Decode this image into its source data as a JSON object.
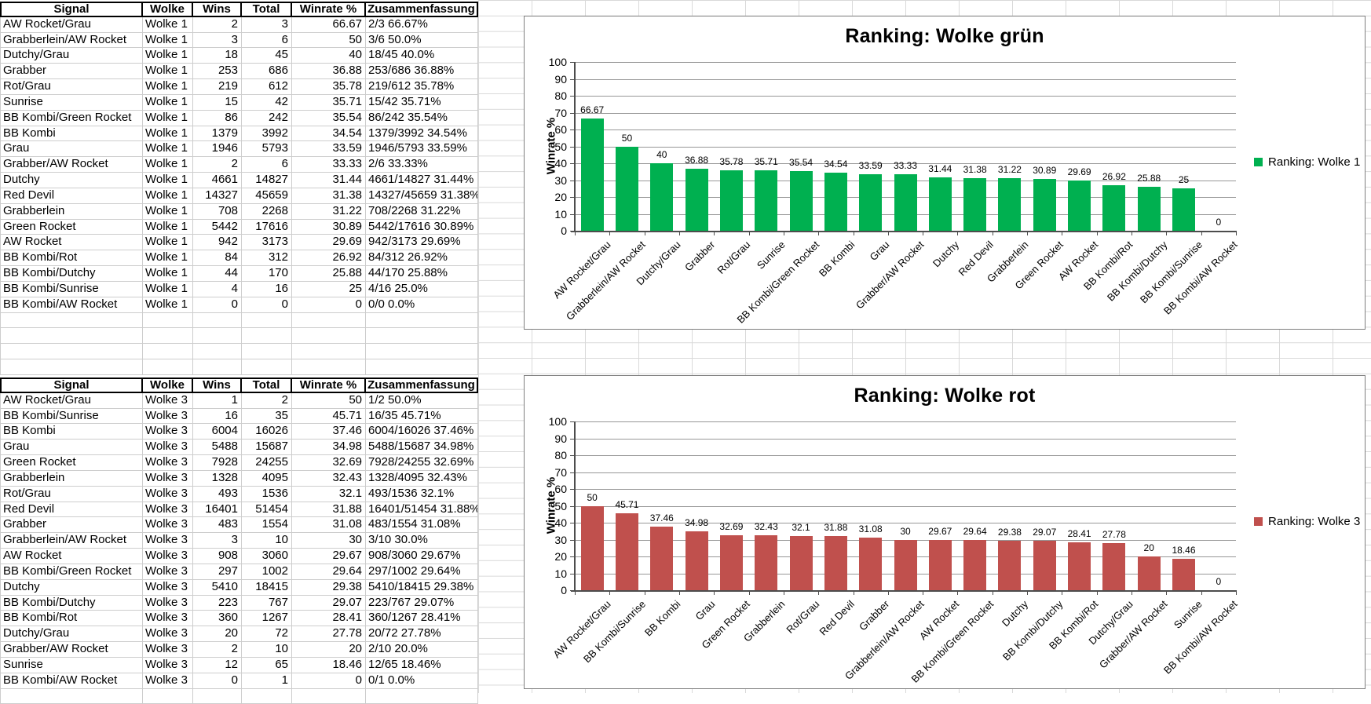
{
  "app": {
    "type": "spreadsheet"
  },
  "tables": [
    {
      "name": "Wolke 1",
      "headers": [
        "Signal",
        "Wolke",
        "Wins",
        "Total",
        "Winrate %",
        "Zusammenfassung"
      ],
      "rows": [
        [
          "AW Rocket/Grau",
          "Wolke 1",
          "2",
          "3",
          "66.67",
          "2/3 66.67%"
        ],
        [
          "Grabberlein/AW Rocket",
          "Wolke 1",
          "3",
          "6",
          "50",
          "3/6 50.0%"
        ],
        [
          "Dutchy/Grau",
          "Wolke 1",
          "18",
          "45",
          "40",
          "18/45 40.0%"
        ],
        [
          "Grabber",
          "Wolke 1",
          "253",
          "686",
          "36.88",
          "253/686 36.88%"
        ],
        [
          "Rot/Grau",
          "Wolke 1",
          "219",
          "612",
          "35.78",
          "219/612 35.78%"
        ],
        [
          "Sunrise",
          "Wolke 1",
          "15",
          "42",
          "35.71",
          "15/42 35.71%"
        ],
        [
          "BB Kombi/Green Rocket",
          "Wolke 1",
          "86",
          "242",
          "35.54",
          "86/242 35.54%"
        ],
        [
          "BB Kombi",
          "Wolke 1",
          "1379",
          "3992",
          "34.54",
          "1379/3992 34.54%"
        ],
        [
          "Grau",
          "Wolke 1",
          "1946",
          "5793",
          "33.59",
          "1946/5793 33.59%"
        ],
        [
          "Grabber/AW Rocket",
          "Wolke 1",
          "2",
          "6",
          "33.33",
          "2/6 33.33%"
        ],
        [
          "Dutchy",
          "Wolke 1",
          "4661",
          "14827",
          "31.44",
          "4661/14827 31.44%"
        ],
        [
          "Red Devil",
          "Wolke 1",
          "14327",
          "45659",
          "31.38",
          "14327/45659 31.38%"
        ],
        [
          "Grabberlein",
          "Wolke 1",
          "708",
          "2268",
          "31.22",
          "708/2268 31.22%"
        ],
        [
          "Green Rocket",
          "Wolke 1",
          "5442",
          "17616",
          "30.89",
          "5442/17616 30.89%"
        ],
        [
          "AW Rocket",
          "Wolke 1",
          "942",
          "3173",
          "29.69",
          "942/3173 29.69%"
        ],
        [
          "BB Kombi/Rot",
          "Wolke 1",
          "84",
          "312",
          "26.92",
          "84/312 26.92%"
        ],
        [
          "BB Kombi/Dutchy",
          "Wolke 1",
          "44",
          "170",
          "25.88",
          "44/170 25.88%"
        ],
        [
          "BB Kombi/Sunrise",
          "Wolke 1",
          "4",
          "16",
          "25",
          "4/16 25.0%"
        ],
        [
          "BB Kombi/AW Rocket",
          "Wolke 1",
          "0",
          "0",
          "0",
          "0/0 0.0%"
        ]
      ]
    },
    {
      "name": "Wolke 3",
      "headers": [
        "Signal",
        "Wolke",
        "Wins",
        "Total",
        "Winrate %",
        "Zusammenfassung"
      ],
      "rows": [
        [
          "AW Rocket/Grau",
          "Wolke 3",
          "1",
          "2",
          "50",
          "1/2 50.0%"
        ],
        [
          "BB Kombi/Sunrise",
          "Wolke 3",
          "16",
          "35",
          "45.71",
          "16/35 45.71%"
        ],
        [
          "BB Kombi",
          "Wolke 3",
          "6004",
          "16026",
          "37.46",
          "6004/16026 37.46%"
        ],
        [
          "Grau",
          "Wolke 3",
          "5488",
          "15687",
          "34.98",
          "5488/15687 34.98%"
        ],
        [
          "Green Rocket",
          "Wolke 3",
          "7928",
          "24255",
          "32.69",
          "7928/24255 32.69%"
        ],
        [
          "Grabberlein",
          "Wolke 3",
          "1328",
          "4095",
          "32.43",
          "1328/4095 32.43%"
        ],
        [
          "Rot/Grau",
          "Wolke 3",
          "493",
          "1536",
          "32.1",
          "493/1536 32.1%"
        ],
        [
          "Red Devil",
          "Wolke 3",
          "16401",
          "51454",
          "31.88",
          "16401/51454 31.88%"
        ],
        [
          "Grabber",
          "Wolke 3",
          "483",
          "1554",
          "31.08",
          "483/1554 31.08%"
        ],
        [
          "Grabberlein/AW Rocket",
          "Wolke 3",
          "3",
          "10",
          "30",
          "3/10 30.0%"
        ],
        [
          "AW Rocket",
          "Wolke 3",
          "908",
          "3060",
          "29.67",
          "908/3060 29.67%"
        ],
        [
          "BB Kombi/Green Rocket",
          "Wolke 3",
          "297",
          "1002",
          "29.64",
          "297/1002 29.64%"
        ],
        [
          "Dutchy",
          "Wolke 3",
          "5410",
          "18415",
          "29.38",
          "5410/18415 29.38%"
        ],
        [
          "BB Kombi/Dutchy",
          "Wolke 3",
          "223",
          "767",
          "29.07",
          "223/767 29.07%"
        ],
        [
          "BB Kombi/Rot",
          "Wolke 3",
          "360",
          "1267",
          "28.41",
          "360/1267 28.41%"
        ],
        [
          "Dutchy/Grau",
          "Wolke 3",
          "20",
          "72",
          "27.78",
          "20/72 27.78%"
        ],
        [
          "Grabber/AW Rocket",
          "Wolke 3",
          "2",
          "10",
          "20",
          "2/10 20.0%"
        ],
        [
          "Sunrise",
          "Wolke 3",
          "12",
          "65",
          "18.46",
          "12/65 18.46%"
        ],
        [
          "BB Kombi/AW Rocket",
          "Wolke 3",
          "0",
          "1",
          "0",
          "0/1 0.0%"
        ]
      ]
    }
  ],
  "chart_data": [
    {
      "type": "bar",
      "title": "Ranking: Wolke grün",
      "ylabel": "Winrate %",
      "xlabel": "",
      "legend": "Ranking: Wolke 1",
      "legend_position": "right",
      "bar_color": "#00B050",
      "grid": true,
      "ylim": [
        0,
        100
      ],
      "ytick_step": 10,
      "categories": [
        "AW Rocket/Grau",
        "Grabberlein/AW Rocket",
        "Dutchy/Grau",
        "Grabber",
        "Rot/Grau",
        "Sunrise",
        "BB Kombi/Green Rocket",
        "BB Kombi",
        "Grau",
        "Grabber/AW Rocket",
        "Dutchy",
        "Red Devil",
        "Grabberlein",
        "Green Rocket",
        "AW Rocket",
        "BB Kombi/Rot",
        "BB Kombi/Dutchy",
        "BB Kombi/Sunrise",
        "BB Kombi/AW Rocket"
      ],
      "values": [
        66.67,
        50,
        40,
        36.88,
        35.78,
        35.71,
        35.54,
        34.54,
        33.59,
        33.33,
        31.44,
        31.38,
        31.22,
        30.89,
        29.69,
        26.92,
        25.88,
        25,
        0
      ],
      "value_labels": [
        "66.67",
        "50",
        "40",
        "36.88",
        "35.78",
        "35.71",
        "35.54",
        "34.54",
        "33.59",
        "33.33",
        "31.44",
        "31.38",
        "31.22",
        "30.89",
        "29.69",
        "26.92",
        "25.88",
        "25",
        "0"
      ]
    },
    {
      "type": "bar",
      "title": "Ranking: Wolke rot",
      "ylabel": "Winrate %",
      "xlabel": "",
      "legend": "Ranking: Wolke 3",
      "legend_position": "right",
      "bar_color": "#C0504D",
      "grid": true,
      "ylim": [
        0,
        100
      ],
      "ytick_step": 10,
      "categories": [
        "AW Rocket/Grau",
        "BB Kombi/Sunrise",
        "BB Kombi",
        "Grau",
        "Green Rocket",
        "Grabberlein",
        "Rot/Grau",
        "Red Devil",
        "Grabber",
        "Grabberlein/AW Rocket",
        "AW Rocket",
        "BB Kombi/Green Rocket",
        "Dutchy",
        "BB Kombi/Dutchy",
        "BB Kombi/Rot",
        "Dutchy/Grau",
        "Grabber/AW Rocket",
        "Sunrise",
        "BB Kombi/AW Rocket"
      ],
      "values": [
        50,
        45.71,
        37.46,
        34.98,
        32.69,
        32.43,
        32.1,
        31.88,
        31.08,
        30,
        29.67,
        29.64,
        29.38,
        29.07,
        28.41,
        27.78,
        20,
        18.46,
        0
      ],
      "value_labels": [
        "50",
        "45.71",
        "37.46",
        "34.98",
        "32.69",
        "32.43",
        "32.1",
        "31.88",
        "31.08",
        "30",
        "29.67",
        "29.64",
        "29.38",
        "29.07",
        "28.41",
        "27.78",
        "20",
        "18.46",
        "0"
      ]
    }
  ]
}
